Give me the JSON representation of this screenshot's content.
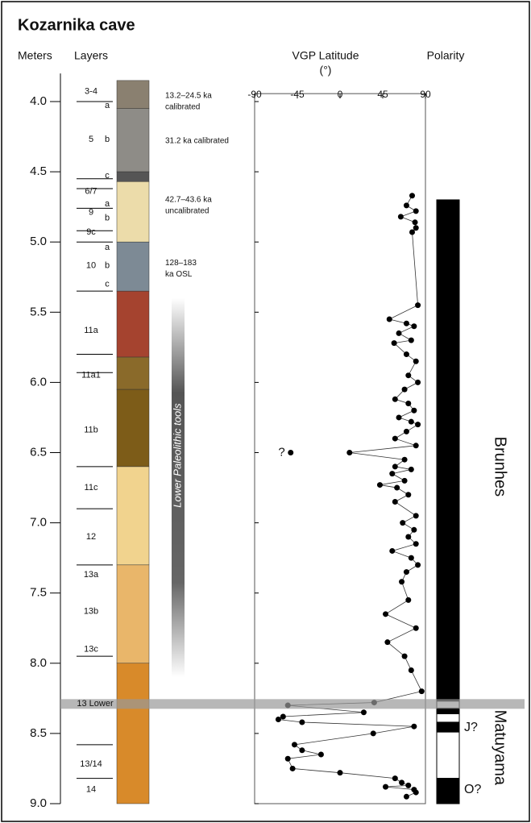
{
  "chart_data": {
    "type": "stratigraphic-log",
    "title": "Kozarnika cave",
    "depth_label": "Meters",
    "layers_label": "Layers",
    "vgp_label": "VGP Latitude",
    "vgp_unit": "(°)",
    "polarity_label": "Polarity",
    "tools_label": "Lower Paleolithic tools",
    "tools_range": [
      5.4,
      8.1
    ],
    "ylim": [
      3.8,
      9.0
    ],
    "yticks": [
      {
        "value": 4,
        "label": "4.0"
      },
      4.5,
      {
        "value": 5,
        "label": "5.0"
      },
      5.5,
      {
        "value": 6,
        "label": "6.0"
      },
      6.5,
      {
        "value": 7,
        "label": "7.0"
      },
      7.5,
      {
        "value": 8,
        "label": "8.0"
      },
      8.5,
      {
        "value": 9,
        "label": "9.0"
      }
    ],
    "xlim": [
      -90,
      90
    ],
    "xticks": [
      -90,
      -45,
      0,
      45,
      90
    ],
    "layer_labels": [
      {
        "label": "3-4",
        "depth": 3.93,
        "sub": false
      },
      {
        "label": "a",
        "depth": 4.03,
        "sub": true
      },
      {
        "label": "5",
        "depth": 4.27,
        "sub": false
      },
      {
        "label": "b",
        "depth": 4.27,
        "sub": true
      },
      {
        "label": "c",
        "depth": 4.53,
        "sub": true
      },
      {
        "label": "6/7",
        "depth": 4.64,
        "sub": false
      },
      {
        "label": "a",
        "depth": 4.73,
        "sub": true
      },
      {
        "label": "9",
        "depth": 4.79,
        "sub": false
      },
      {
        "label": "b",
        "depth": 4.83,
        "sub": true
      },
      {
        "label": "9c",
        "depth": 4.93,
        "sub": false
      },
      {
        "label": "a",
        "depth": 5.04,
        "sub": true
      },
      {
        "label": "10",
        "depth": 5.17,
        "sub": false
      },
      {
        "label": "b",
        "depth": 5.17,
        "sub": true
      },
      {
        "label": "c",
        "depth": 5.3,
        "sub": true
      },
      {
        "label": "11a",
        "depth": 5.63,
        "sub": false
      },
      {
        "label": "11a1",
        "depth": 5.95,
        "sub": false
      },
      {
        "label": "11b",
        "depth": 6.34,
        "sub": false
      },
      {
        "label": "11c",
        "depth": 6.75,
        "sub": false
      },
      {
        "label": "12",
        "depth": 7.1,
        "sub": false
      },
      {
        "label": "13a",
        "depth": 7.37,
        "sub": false
      },
      {
        "label": "13b",
        "depth": 7.63,
        "sub": false
      },
      {
        "label": "13c",
        "depth": 7.9,
        "sub": false
      },
      {
        "label": "13/14",
        "depth": 8.72,
        "sub": false
      },
      {
        "label": "14",
        "depth": 8.9,
        "sub": false
      }
    ],
    "layer_boundaries": [
      4.0,
      4.55,
      4.62,
      4.76,
      4.92,
      5.0,
      5.35,
      5.8,
      5.93,
      6.6,
      6.9,
      7.3,
      7.95,
      8.58,
      8.82
    ],
    "blocks": [
      {
        "top": 3.85,
        "bottom": 4.05,
        "color": "#8a8070"
      },
      {
        "top": 4.05,
        "bottom": 4.5,
        "color": "#8e8c87"
      },
      {
        "top": 4.5,
        "bottom": 4.57,
        "color": "#555555"
      },
      {
        "top": 4.57,
        "bottom": 5.0,
        "color": "#ecdcaa"
      },
      {
        "top": 5.0,
        "bottom": 5.35,
        "color": "#7d8a95"
      },
      {
        "top": 5.35,
        "bottom": 5.82,
        "color": "#a5432f"
      },
      {
        "top": 5.82,
        "bottom": 6.05,
        "color": "#8a6a2a"
      },
      {
        "top": 6.05,
        "bottom": 6.6,
        "color": "#7d5c18"
      },
      {
        "top": 6.6,
        "bottom": 7.3,
        "color": "#f1d38e"
      },
      {
        "top": 7.3,
        "bottom": 8.0,
        "color": "#e9b66a"
      },
      {
        "top": 8.0,
        "bottom": 9.0,
        "color": "#d88a2a"
      }
    ],
    "dates": [
      {
        "depth": 3.96,
        "lines": [
          "13.2–24.5 ka",
          "calibrated"
        ]
      },
      {
        "depth": 4.28,
        "lines": [
          "31.2 ka calibrated"
        ]
      },
      {
        "depth": 4.7,
        "lines": [
          "42.7–43.6 ka",
          "uncalibrated"
        ]
      },
      {
        "depth": 5.15,
        "lines": [
          "128–183",
          "ka OSL"
        ]
      }
    ],
    "marker": {
      "label": "13 Lower",
      "depth": 8.29
    },
    "vgp": {
      "color": "#000000",
      "depth": [
        4.67,
        4.74,
        4.78,
        4.82,
        4.86,
        4.9,
        4.93,
        5.45,
        5.55,
        5.58,
        5.6,
        5.65,
        5.7,
        5.72,
        5.8,
        5.85,
        5.95,
        6.0,
        6.05,
        6.12,
        6.15,
        6.2,
        6.25,
        6.28,
        6.3,
        6.35,
        6.4,
        6.45,
        6.5,
        6.55,
        6.6,
        6.62,
        6.65,
        6.7,
        6.73,
        6.75,
        6.8,
        6.85,
        6.95,
        7.0,
        7.05,
        7.1,
        7.15,
        7.2,
        7.25,
        7.3,
        7.35,
        7.42,
        7.55,
        7.65,
        7.75,
        7.85,
        7.95,
        8.05,
        8.2,
        8.28,
        8.3,
        8.35,
        8.38,
        8.4,
        8.42,
        8.45,
        8.5,
        8.58,
        8.62,
        8.65,
        8.68,
        8.75,
        8.78,
        8.82,
        8.85,
        8.87,
        8.88,
        8.9,
        8.92,
        8.95
      ],
      "lat": [
        76,
        70,
        80,
        64,
        79,
        80,
        76,
        82,
        52,
        70,
        78,
        62,
        75,
        57,
        70,
        80,
        72,
        82,
        68,
        58,
        72,
        78,
        62,
        75,
        82,
        70,
        58,
        80,
        10,
        68,
        58,
        75,
        55,
        68,
        42,
        60,
        72,
        58,
        80,
        66,
        78,
        72,
        80,
        55,
        75,
        82,
        70,
        65,
        72,
        48,
        80,
        50,
        68,
        75,
        86,
        36,
        -55,
        25,
        -60,
        -65,
        -40,
        78,
        35,
        -48,
        -40,
        -20,
        -55,
        -50,
        0,
        58,
        65,
        72,
        48,
        78,
        80,
        70
      ]
    },
    "outlier": {
      "label": "?",
      "depth": 6.5,
      "lat": -52
    },
    "polarity_zones": [
      {
        "top": 4.7,
        "bottom": 8.27,
        "color": "#000000"
      },
      {
        "top": 8.27,
        "bottom": 8.32,
        "color": "#ffffff"
      },
      {
        "top": 8.32,
        "bottom": 8.36,
        "color": "#000000"
      },
      {
        "top": 8.36,
        "bottom": 8.42,
        "color": "#ffffff"
      },
      {
        "top": 8.42,
        "bottom": 8.49,
        "color": "#000000"
      },
      {
        "top": 8.49,
        "bottom": 8.82,
        "color": "#ffffff"
      },
      {
        "top": 8.82,
        "bottom": 9.0,
        "color": "#000000"
      }
    ],
    "chrons": [
      {
        "label": "Brunhes",
        "depth": 6.6,
        "big": true
      },
      {
        "label": "Matuyama",
        "depth": 8.6,
        "big": true
      },
      {
        "label": "J?",
        "depth": 8.46,
        "big": false
      },
      {
        "label": "O?",
        "depth": 8.9,
        "big": false
      }
    ]
  }
}
